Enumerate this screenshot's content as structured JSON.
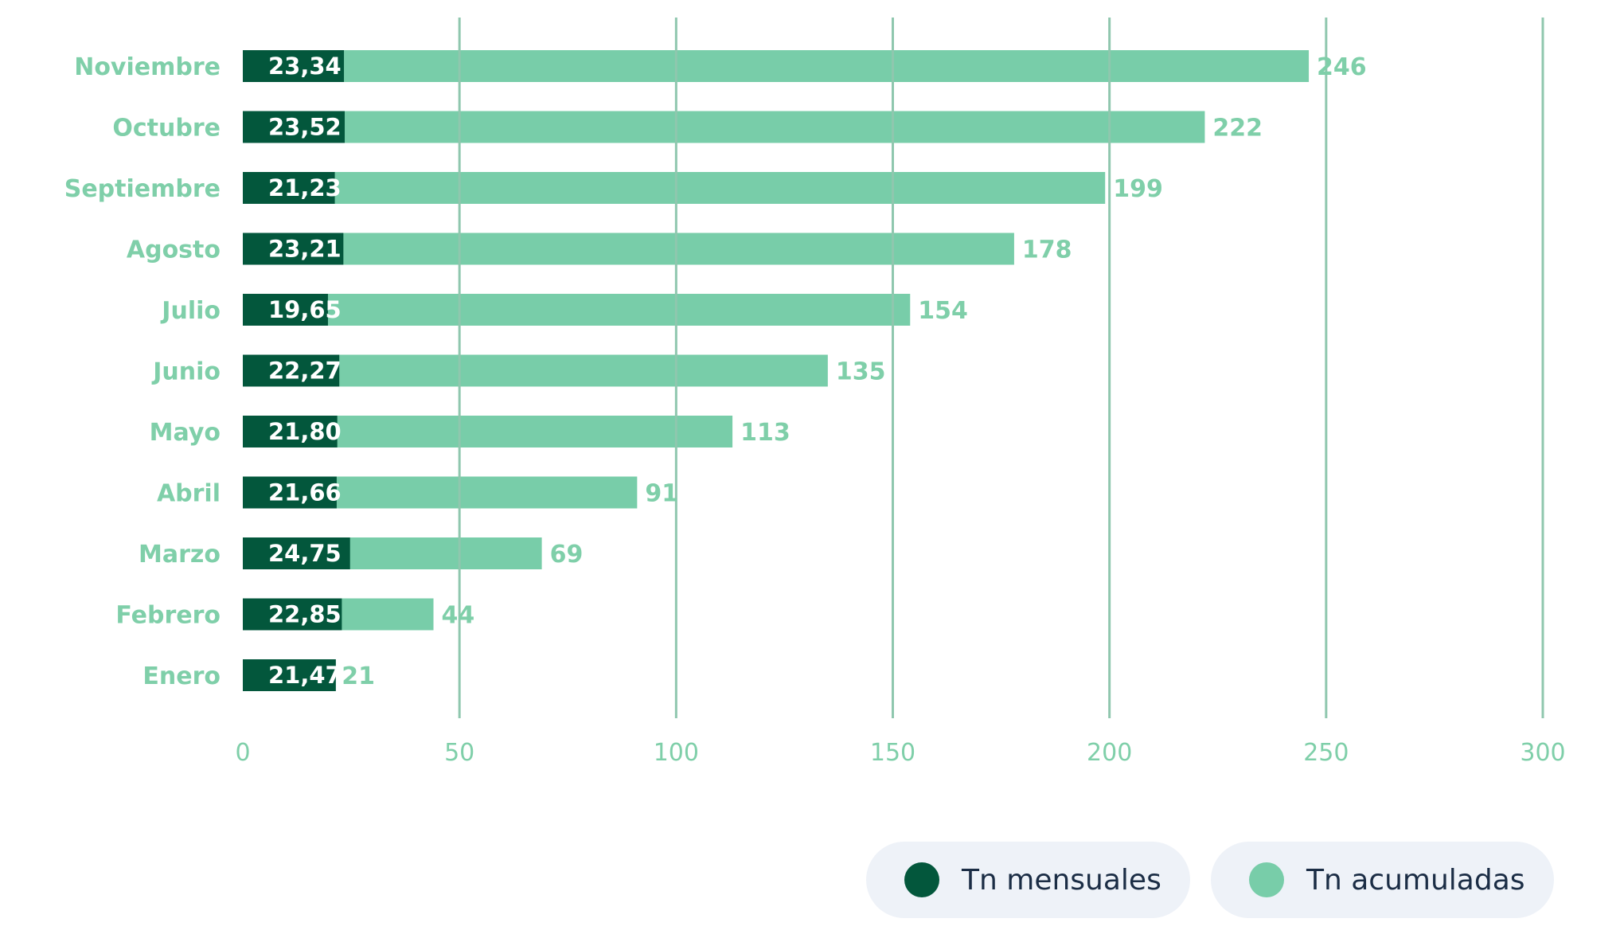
{
  "colors": {
    "monthly": "#03573c",
    "accumulated": "#78cda9",
    "grid": "#8fc7ae",
    "label": "#7fcfa9",
    "legend_bg": "#eef2f8",
    "legend_text": "#1b2d45"
  },
  "legend": {
    "monthly": "Tn mensuales",
    "accumulated": "Tn acumuladas"
  },
  "chart_data": {
    "type": "bar",
    "orientation": "horizontal",
    "categories": [
      "Noviembre",
      "Octubre",
      "Septiembre",
      "Agosto",
      "Julio",
      "Junio",
      "Mayo",
      "Abril",
      "Marzo",
      "Febrero",
      "Enero"
    ],
    "series": [
      {
        "name": "Tn mensuales",
        "values": [
          23.34,
          23.52,
          21.23,
          23.21,
          19.65,
          22.27,
          21.8,
          21.66,
          24.75,
          22.85,
          21.47
        ],
        "labels": [
          "23,34",
          "23,52",
          "21,23",
          "23,21",
          "19,65",
          "22,27",
          "21,80",
          "21,66",
          "24,75",
          "22,85",
          "21,47"
        ]
      },
      {
        "name": "Tn acumuladas",
        "values": [
          246,
          222,
          199,
          178,
          154,
          135,
          113,
          91,
          69,
          44,
          21
        ],
        "labels": [
          "246",
          "222",
          "199",
          "178",
          "154",
          "135",
          "113",
          "91",
          "69",
          "44",
          "21"
        ]
      }
    ],
    "x_ticks": [
      0,
      50,
      100,
      150,
      200,
      250,
      300
    ],
    "x_tick_labels": [
      "0",
      "50",
      "100",
      "150",
      "200",
      "250",
      "300"
    ],
    "xlim": [
      0,
      300
    ],
    "grid": true,
    "legend_position": "bottom-right"
  }
}
